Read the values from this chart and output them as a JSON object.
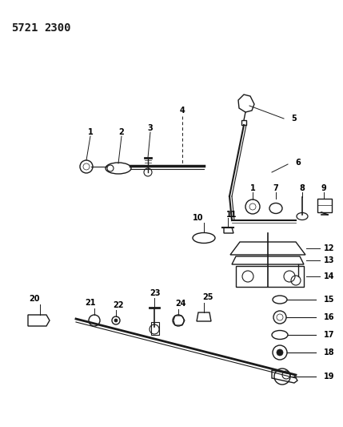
{
  "title1": "5721",
  "title2": "2300",
  "bg_color": "#ffffff",
  "fg_color": "#1a1a1a",
  "figsize": [
    4.29,
    5.33
  ],
  "dpi": 100
}
